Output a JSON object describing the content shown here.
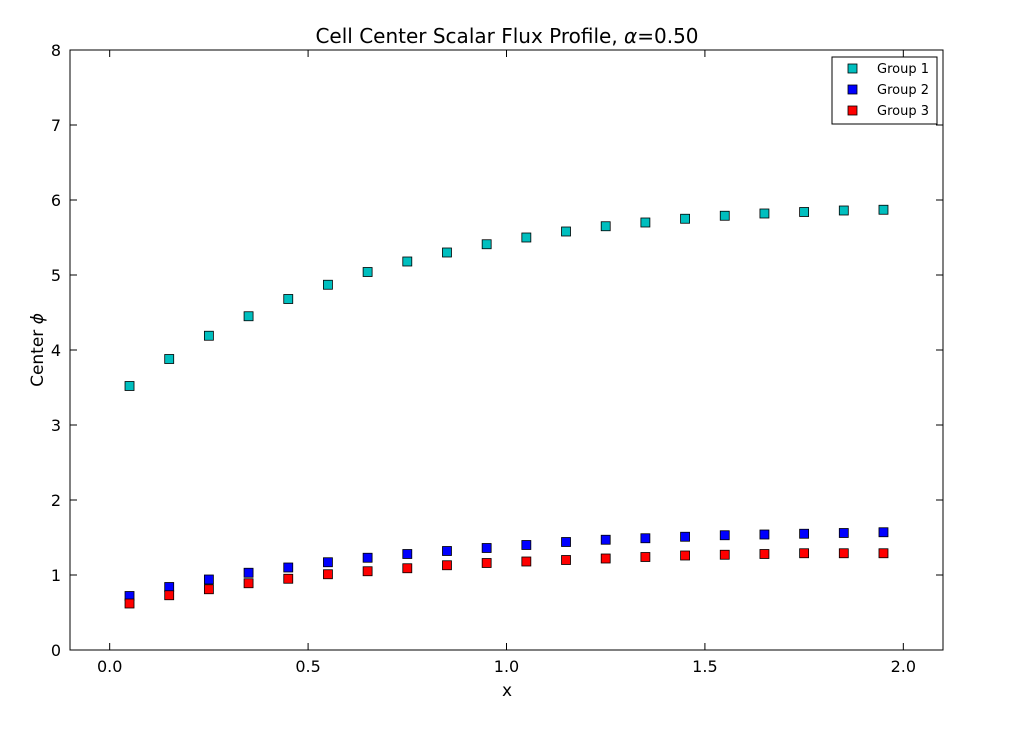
{
  "chart_data": {
    "type": "scatter",
    "title_main": "Cell Center Scalar Flux Profile, ",
    "title_alpha": "α",
    "title_value": "=0.50",
    "xlabel": "x",
    "ylabel_main": "Center ",
    "ylabel_symbol": "ϕ",
    "xlim": [
      -0.1,
      2.1
    ],
    "ylim": [
      0,
      8
    ],
    "x_ticks": [
      "0.0",
      "0.5",
      "1.0",
      "1.5",
      "2.0"
    ],
    "y_ticks": [
      "0",
      "1",
      "2",
      "3",
      "4",
      "5",
      "6",
      "7",
      "8"
    ],
    "legend_position": "top-right",
    "grid": false,
    "x": [
      0.05,
      0.15,
      0.25,
      0.35,
      0.45,
      0.55,
      0.65,
      0.75,
      0.85,
      0.95,
      1.05,
      1.15,
      1.25,
      1.35,
      1.45,
      1.55,
      1.65,
      1.75,
      1.85,
      1.95
    ],
    "series": [
      {
        "name": "Group 1",
        "color": "#00bfbf",
        "values": [
          3.52,
          3.88,
          4.19,
          4.45,
          4.68,
          4.87,
          5.04,
          5.18,
          5.3,
          5.41,
          5.5,
          5.58,
          5.65,
          5.7,
          5.75,
          5.79,
          5.82,
          5.84,
          5.86,
          5.87
        ]
      },
      {
        "name": "Group 2",
        "color": "#0000ff",
        "values": [
          0.72,
          0.84,
          0.94,
          1.03,
          1.1,
          1.17,
          1.23,
          1.28,
          1.32,
          1.36,
          1.4,
          1.44,
          1.47,
          1.49,
          1.51,
          1.53,
          1.54,
          1.55,
          1.56,
          1.57
        ]
      },
      {
        "name": "Group 3",
        "color": "#ff0000",
        "values": [
          0.62,
          0.73,
          0.81,
          0.89,
          0.95,
          1.01,
          1.05,
          1.09,
          1.13,
          1.16,
          1.18,
          1.2,
          1.22,
          1.24,
          1.26,
          1.27,
          1.28,
          1.29,
          1.29,
          1.29
        ]
      }
    ]
  }
}
